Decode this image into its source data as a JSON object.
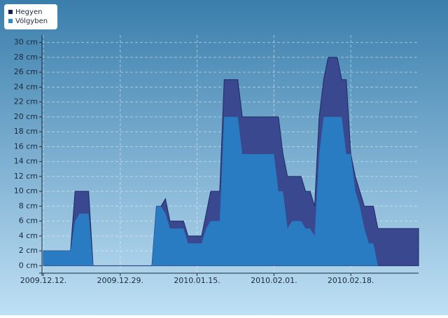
{
  "chart_data": {
    "type": "area",
    "x": [
      "2009.12.12.",
      "2009.12.13.",
      "2009.12.14.",
      "2009.12.15.",
      "2009.12.16.",
      "2009.12.17.",
      "2009.12.18.",
      "2009.12.19.",
      "2009.12.20.",
      "2009.12.21.",
      "2009.12.22.",
      "2009.12.23.",
      "2009.12.24.",
      "2009.12.25.",
      "2009.12.26.",
      "2009.12.27.",
      "2009.12.28.",
      "2009.12.29.",
      "2009.12.30.",
      "2009.12.31.",
      "2010.01.01.",
      "2010.01.02.",
      "2010.01.03.",
      "2010.01.04.",
      "2010.01.05.",
      "2010.01.06.",
      "2010.01.07.",
      "2010.01.08.",
      "2010.01.09.",
      "2010.01.10.",
      "2010.01.11.",
      "2010.01.12.",
      "2010.01.13.",
      "2010.01.14.",
      "2010.01.15.",
      "2010.01.16.",
      "2010.01.17.",
      "2010.01.18.",
      "2010.01.19.",
      "2010.01.20.",
      "2010.01.21.",
      "2010.01.22.",
      "2010.01.23.",
      "2010.01.24.",
      "2010.01.25.",
      "2010.01.26.",
      "2010.01.27.",
      "2010.01.28.",
      "2010.01.29.",
      "2010.01.30.",
      "2010.01.31.",
      "2010.02.01.",
      "2010.02.02.",
      "2010.02.03.",
      "2010.02.04.",
      "2010.02.05.",
      "2010.02.06.",
      "2010.02.07.",
      "2010.02.08.",
      "2010.02.09.",
      "2010.02.10.",
      "2010.02.11.",
      "2010.02.12.",
      "2010.02.13.",
      "2010.02.14.",
      "2010.02.15.",
      "2010.02.16.",
      "2010.02.17.",
      "2010.02.18.",
      "2010.02.19.",
      "2010.02.20.",
      "2010.02.21.",
      "2010.02.22.",
      "2010.02.23.",
      "2010.02.24.",
      "2010.02.25.",
      "2010.02.26.",
      "2010.02.27.",
      "2010.02.28.",
      "2010.03.01.",
      "2010.03.02.",
      "2010.03.03.",
      "2010.03.04.",
      "2010.03.05."
    ],
    "series": [
      {
        "name": "Hegyen",
        "color": "#3a4890",
        "legend_color": "#0f1f5e",
        "values": [
          2,
          2,
          2,
          2,
          2,
          2,
          2,
          10,
          10,
          10,
          10,
          0,
          0,
          0,
          0,
          0,
          0,
          0,
          0,
          0,
          0,
          0,
          0,
          0,
          0,
          8,
          8,
          9,
          6,
          6,
          6,
          6,
          4,
          4,
          4,
          4,
          7,
          10,
          10,
          10,
          25,
          25,
          25,
          25,
          20,
          20,
          20,
          20,
          20,
          20,
          20,
          20,
          20,
          15,
          12,
          12,
          12,
          12,
          10,
          10,
          8,
          20,
          25,
          28,
          28,
          28,
          25,
          25,
          15,
          12,
          10,
          8,
          8,
          8,
          5,
          5,
          5,
          5,
          5,
          5,
          5,
          5,
          5,
          5
        ]
      },
      {
        "name": "Völgyben",
        "color": "#2a7cc2",
        "legend_color": "#2a8ad0",
        "values": [
          2,
          2,
          2,
          2,
          2,
          2,
          2,
          6,
          7,
          7,
          7,
          0,
          0,
          0,
          0,
          0,
          0,
          0,
          0,
          0,
          0,
          0,
          0,
          0,
          0,
          8,
          8,
          7,
          5,
          5,
          5,
          5,
          3,
          3,
          3,
          3,
          5,
          6,
          6,
          6,
          20,
          20,
          20,
          20,
          15,
          15,
          15,
          15,
          15,
          15,
          15,
          15,
          10,
          10,
          5,
          6,
          6,
          6,
          5,
          5,
          4,
          15,
          20,
          20,
          20,
          20,
          20,
          15,
          15,
          10,
          8,
          5,
          3,
          3,
          0,
          0,
          0,
          0,
          0,
          0,
          0,
          0,
          0,
          0
        ]
      }
    ],
    "xticks": [
      "2009.12.12.",
      "2009.12.29.",
      "2010.01.15.",
      "2010.02.01.",
      "2010.02.18."
    ],
    "ylim": [
      -1,
      31
    ],
    "yticks": [
      {
        "value": 0,
        "label": "0 cm"
      },
      {
        "value": 2,
        "label": "2 cm"
      },
      {
        "value": 4,
        "label": "4 cm"
      },
      {
        "value": 6,
        "label": "6 cm"
      },
      {
        "value": 8,
        "label": "8 cm"
      },
      {
        "value": 10,
        "label": "10 cm"
      },
      {
        "value": 12,
        "label": "12 cm"
      },
      {
        "value": 14,
        "label": "14 cm"
      },
      {
        "value": 16,
        "label": "16 cm"
      },
      {
        "value": 18,
        "label": "18 cm"
      },
      {
        "value": 20,
        "label": "20 cm"
      },
      {
        "value": 22,
        "label": "22 cm"
      },
      {
        "value": 24,
        "label": "24 cm"
      },
      {
        "value": 26,
        "label": "26 cm"
      },
      {
        "value": 28,
        "label": "28 cm"
      },
      {
        "value": 30,
        "label": "30 cm"
      }
    ],
    "grid": true,
    "legend": "top-left"
  }
}
